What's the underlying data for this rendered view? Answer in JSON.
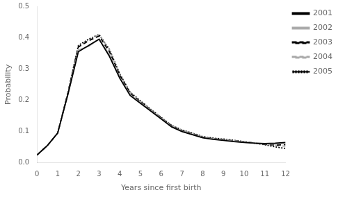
{
  "chart_data": {
    "type": "line",
    "xlabel": "Years since first birth",
    "ylabel": "Probability",
    "x": [
      0,
      0.5,
      1.0,
      1.5,
      2.0,
      2.5,
      3.0,
      3.5,
      4.0,
      4.5,
      5.0,
      5.5,
      6.0,
      6.5,
      7.0,
      7.5,
      8.0,
      8.5,
      9.0,
      9.5,
      10.0,
      10.5,
      11.0,
      11.5,
      12.0
    ],
    "series": [
      {
        "name": "2001",
        "color": "#000000",
        "line_style": "solid",
        "values": [
          0.025,
          0.055,
          0.095,
          0.22,
          0.355,
          0.375,
          0.395,
          0.34,
          0.27,
          0.215,
          0.19,
          0.165,
          0.14,
          0.115,
          0.1,
          0.09,
          0.08,
          0.075,
          0.072,
          0.068,
          0.065,
          0.063,
          0.062,
          0.063,
          0.065
        ]
      },
      {
        "name": "2002",
        "color": "#aaaaaa",
        "line_style": "solid",
        "values": [
          0.025,
          0.055,
          0.095,
          0.22,
          0.36,
          0.372,
          0.395,
          0.345,
          0.272,
          0.218,
          0.192,
          0.167,
          0.142,
          0.116,
          0.101,
          0.091,
          0.081,
          0.076,
          0.073,
          0.069,
          0.066,
          0.063,
          0.061,
          0.06,
          0.062
        ]
      },
      {
        "name": "2003",
        "color": "#000000",
        "line_style": "dashed",
        "values": [
          0.025,
          0.055,
          0.095,
          0.225,
          0.37,
          0.39,
          0.405,
          0.355,
          0.28,
          0.222,
          0.195,
          0.168,
          0.143,
          0.118,
          0.103,
          0.093,
          0.082,
          0.077,
          0.074,
          0.07,
          0.067,
          0.063,
          0.059,
          0.057,
          0.058
        ]
      },
      {
        "name": "2004",
        "color": "#aaaaaa",
        "line_style": "dashed",
        "values": [
          0.025,
          0.055,
          0.095,
          0.225,
          0.37,
          0.39,
          0.41,
          0.36,
          0.282,
          0.225,
          0.197,
          0.17,
          0.144,
          0.119,
          0.104,
          0.094,
          0.083,
          0.078,
          0.075,
          0.071,
          0.068,
          0.064,
          0.06,
          0.056,
          0.053
        ]
      },
      {
        "name": "2005",
        "color": "#000000",
        "line_style": "dotted",
        "values": [
          0.025,
          0.055,
          0.095,
          0.225,
          0.375,
          0.395,
          0.41,
          0.362,
          0.284,
          0.226,
          0.198,
          0.171,
          0.145,
          0.12,
          0.105,
          0.095,
          0.084,
          0.079,
          0.076,
          0.072,
          0.068,
          0.063,
          0.058,
          0.051,
          0.046
        ]
      }
    ],
    "xlim": [
      0,
      12
    ],
    "ylim": [
      0,
      0.5
    ],
    "xticks": [
      0,
      1,
      2,
      3,
      4,
      5,
      6,
      7,
      8,
      9,
      10,
      11,
      12
    ],
    "yticks": [
      {
        "value": 0,
        "label": "0.0"
      },
      0.1,
      0.2,
      0.3,
      0.4,
      0.5
    ],
    "grid": false,
    "legend": "upper right"
  }
}
